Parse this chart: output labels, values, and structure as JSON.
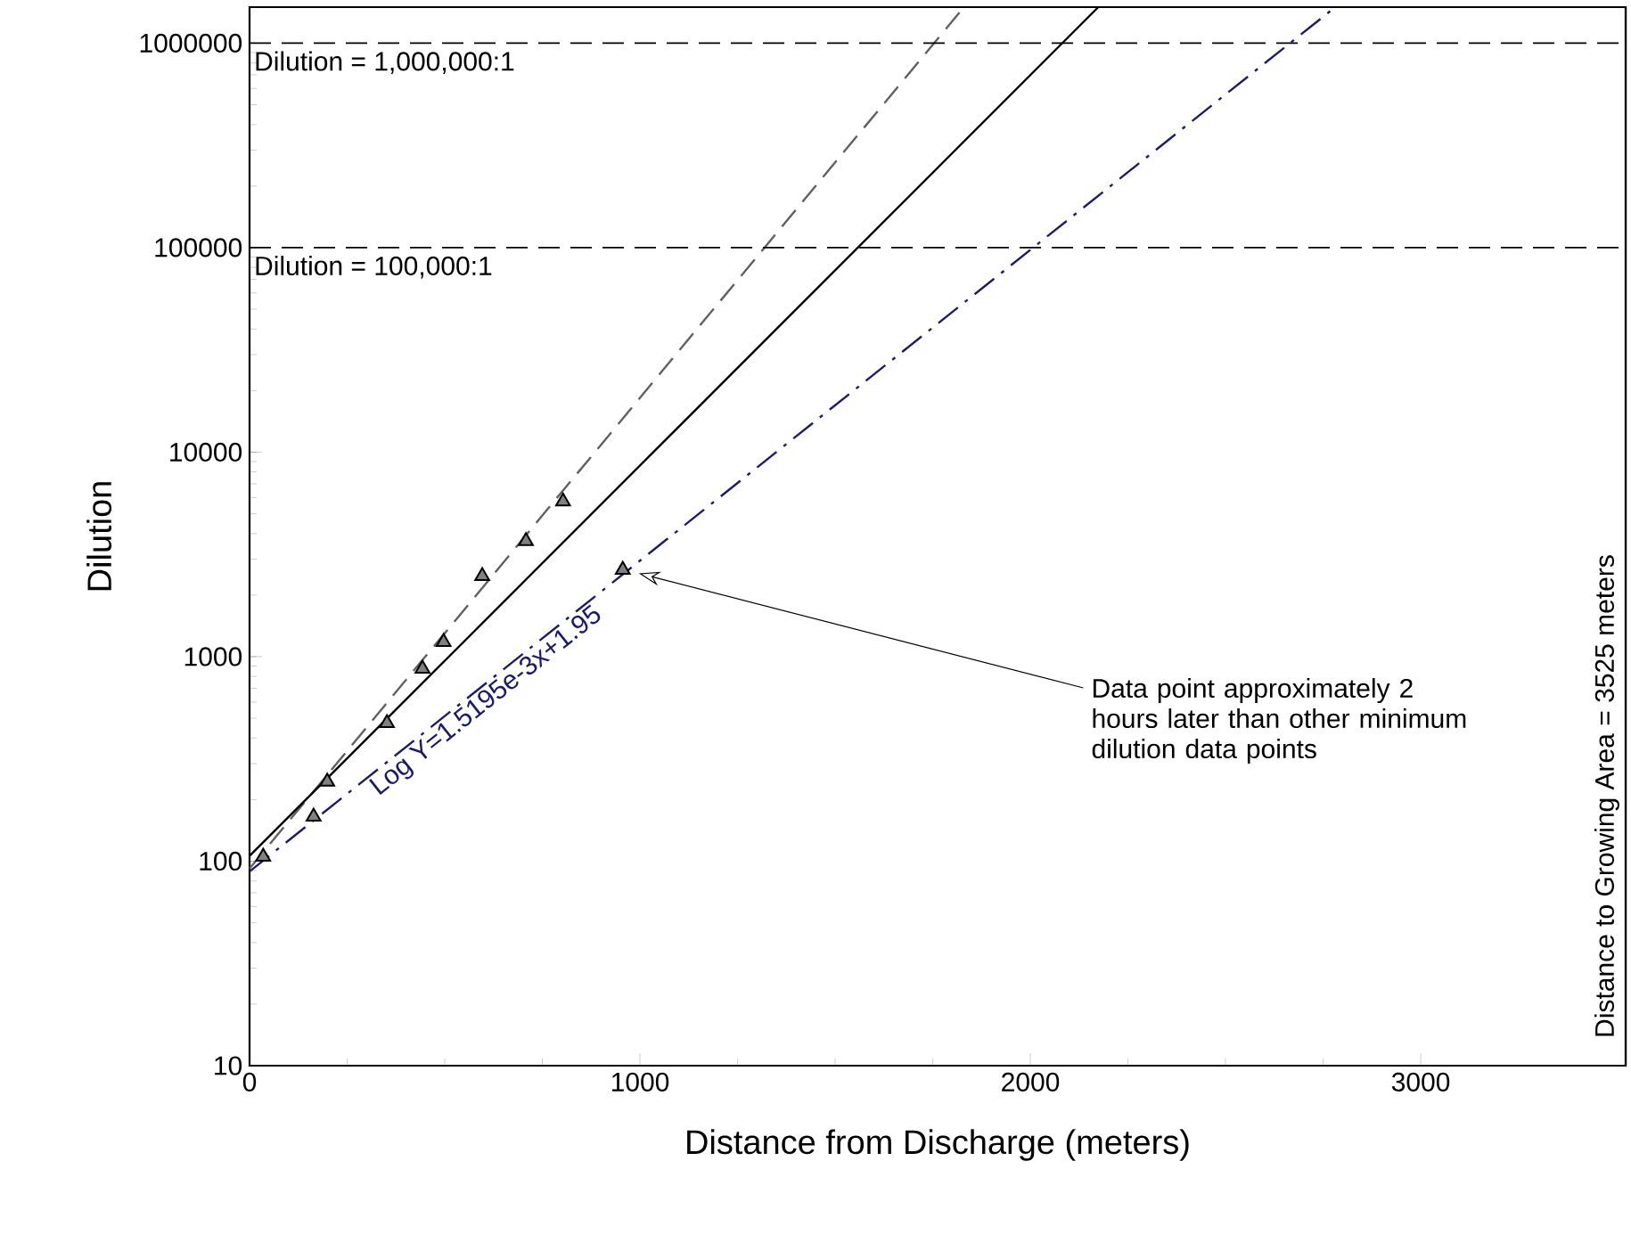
{
  "chart_data": {
    "type": "scatter",
    "xlabel": "Distance from Discharge (meters)",
    "ylabel": "Dilution",
    "log": "y",
    "legend": false,
    "xlim": [
      0,
      3525
    ],
    "ylim": [
      10,
      1500000
    ],
    "xticks": [
      0,
      1000,
      2000,
      3000
    ],
    "yticks": [
      10,
      100,
      1000,
      10000,
      100000,
      1000000
    ],
    "series": [
      {
        "color": "#808080",
        "marker": "triangle",
        "x": [
          35,
          164,
          199,
          352,
          443,
          497,
          596,
          708,
          803,
          956
        ],
        "values": [
          105,
          165,
          245,
          473,
          874,
          1180,
          2480,
          3670,
          5740,
          2660
        ]
      },
      {
        "type": "line",
        "color": "#606060",
        "line_style": "dashed",
        "marker": "none",
        "x": [
          0,
          1830
        ],
        "values": [
          92,
          1500000
        ]
      },
      {
        "type": "line",
        "color": "#000000",
        "line_style": "solid",
        "marker": "none",
        "x": [
          0,
          2174
        ],
        "values": [
          106,
          1500000
        ]
      },
      {
        "type": "line",
        "name": "Log Y=1.5195e-3x+1.95",
        "color": "#1a1a6e",
        "line_style": "dashdot",
        "marker": "none",
        "x": [
          0,
          2781
        ],
        "values": [
          89,
          1500000
        ]
      }
    ],
    "ref_lines": [
      {
        "axis": "y",
        "value": 1000000,
        "label": "Dilution = 1,000,000:1",
        "line_style": "dashed",
        "color": "#000000"
      },
      {
        "axis": "y",
        "value": 100000,
        "label": "Dilution = 100,000:1",
        "line_style": "dashed",
        "color": "#000000"
      },
      {
        "axis": "x",
        "value": 3525,
        "label": "Distance to Growing Area = 3525 meters",
        "line_style": "solid",
        "color": "#000000"
      }
    ],
    "annotations": [
      "Data point approximately 2 hours later than other minimum dilution data points"
    ]
  }
}
